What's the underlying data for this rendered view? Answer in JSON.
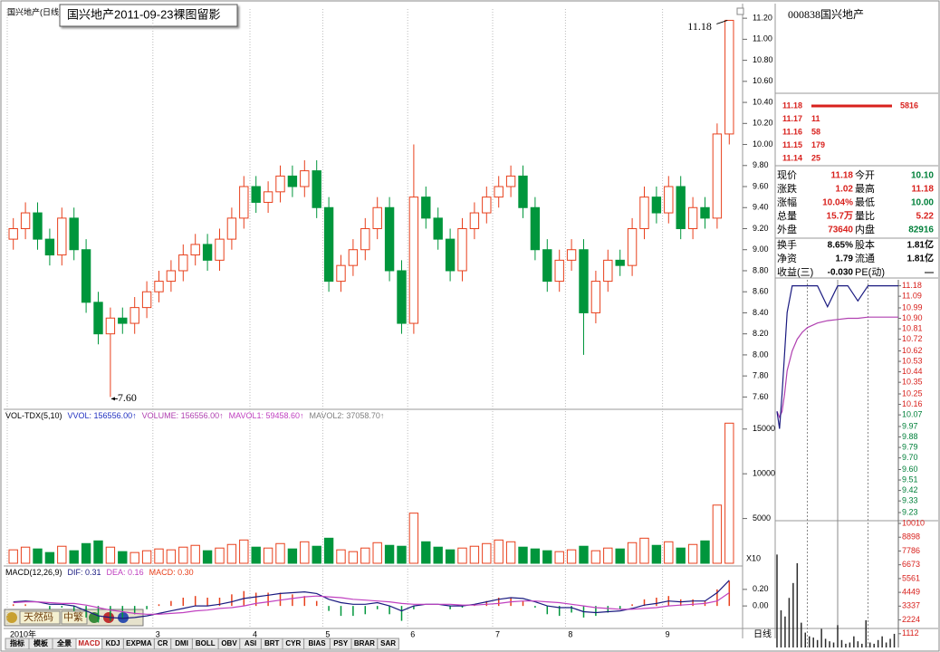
{
  "window_title": "国兴地产2011-09-23裸图留影",
  "chart_data": [
    {
      "type": "candlestick",
      "title": "国兴地产(日线)",
      "categories": [
        "2010年",
        null,
        null,
        null,
        null,
        null,
        null,
        null,
        null,
        null,
        null,
        null,
        "3",
        null,
        null,
        null,
        null,
        null,
        null,
        null,
        "4",
        null,
        null,
        null,
        null,
        null,
        "5",
        null,
        null,
        null,
        null,
        null,
        null,
        "6",
        null,
        null,
        null,
        null,
        null,
        null,
        "7",
        null,
        null,
        null,
        null,
        null,
        "8",
        null,
        null,
        null,
        null,
        null,
        null,
        null,
        "9",
        null,
        null,
        null,
        null,
        null
      ],
      "open": [
        9.1,
        9.2,
        9.35,
        9.1,
        8.95,
        9.3,
        9.0,
        8.5,
        8.2,
        8.35,
        8.3,
        8.45,
        8.6,
        8.7,
        8.8,
        8.95,
        9.05,
        8.9,
        9.1,
        9.3,
        9.6,
        9.45,
        9.55,
        9.7,
        9.6,
        9.75,
        9.4,
        8.7,
        8.85,
        9.0,
        9.2,
        9.4,
        8.8,
        8.3,
        9.5,
        9.3,
        9.1,
        8.8,
        9.2,
        9.35,
        9.5,
        9.6,
        9.7,
        9.4,
        9.0,
        8.7,
        8.9,
        9.0,
        8.4,
        8.7,
        8.9,
        8.85,
        9.2,
        9.5,
        9.35,
        9.6,
        9.2,
        9.4,
        9.3,
        10.1
      ],
      "high": [
        9.3,
        9.45,
        9.45,
        9.2,
        9.4,
        9.4,
        9.1,
        8.6,
        8.45,
        8.45,
        8.55,
        8.7,
        8.8,
        8.9,
        9.05,
        9.15,
        9.15,
        9.2,
        9.4,
        9.7,
        9.7,
        9.65,
        9.8,
        9.8,
        9.85,
        9.85,
        9.5,
        8.95,
        9.1,
        9.3,
        9.5,
        9.5,
        8.9,
        10.0,
        9.6,
        9.4,
        9.2,
        9.3,
        9.45,
        9.6,
        9.7,
        9.8,
        9.8,
        9.5,
        9.1,
        9.0,
        9.1,
        9.1,
        8.8,
        9.0,
        9.0,
        9.3,
        9.6,
        9.6,
        9.7,
        9.7,
        9.5,
        9.5,
        10.2,
        11.18
      ],
      "low": [
        9.0,
        9.1,
        9.0,
        8.85,
        8.85,
        8.9,
        8.4,
        8.1,
        7.6,
        8.2,
        8.2,
        8.35,
        8.5,
        8.6,
        8.7,
        8.85,
        8.8,
        8.8,
        9.0,
        9.2,
        9.35,
        9.35,
        9.45,
        9.5,
        9.5,
        9.3,
        8.6,
        8.6,
        8.75,
        8.9,
        9.1,
        8.7,
        8.2,
        8.2,
        9.2,
        9.0,
        8.7,
        8.7,
        9.1,
        9.25,
        9.4,
        9.5,
        9.3,
        8.9,
        8.6,
        8.6,
        8.8,
        8.0,
        8.3,
        8.6,
        8.75,
        8.75,
        9.1,
        9.25,
        9.25,
        9.1,
        9.1,
        9.2,
        9.2,
        10.0
      ],
      "close": [
        9.2,
        9.35,
        9.1,
        8.95,
        9.3,
        9.0,
        8.5,
        8.2,
        8.35,
        8.3,
        8.45,
        8.6,
        8.7,
        8.8,
        8.95,
        9.05,
        8.9,
        9.1,
        9.3,
        9.6,
        9.45,
        9.55,
        9.7,
        9.6,
        9.75,
        9.4,
        8.7,
        8.85,
        9.0,
        9.2,
        9.4,
        8.8,
        8.3,
        9.5,
        9.3,
        9.1,
        8.8,
        9.2,
        9.35,
        9.5,
        9.6,
        9.7,
        9.4,
        9.0,
        8.7,
        8.9,
        9.0,
        8.4,
        8.7,
        8.9,
        8.85,
        9.2,
        9.5,
        9.35,
        9.6,
        9.2,
        9.4,
        9.3,
        10.1,
        11.18
      ],
      "up_color": "#e8401c",
      "down_color": "#00963c",
      "ylim": [
        7.5,
        11.27
      ],
      "yticks": [
        {
          "value": 7.6,
          "label": "7.60"
        },
        {
          "value": 7.8,
          "label": "7.80"
        },
        {
          "value": 8,
          "label": "8.00"
        },
        {
          "value": 8.2,
          "label": "8.20"
        },
        {
          "value": 8.4,
          "label": "8.40"
        },
        {
          "value": 8.6,
          "label": "8.60"
        },
        {
          "value": 8.8,
          "label": "8.80"
        },
        {
          "value": 9,
          "label": "9.00"
        },
        {
          "value": 9.2,
          "label": "9.20"
        },
        {
          "value": 9.4,
          "label": "9.40"
        },
        {
          "value": 9.6,
          "label": "9.60"
        },
        {
          "value": 9.8,
          "label": "9.80"
        },
        {
          "value": 10,
          "label": "10.00"
        },
        {
          "value": 10.2,
          "label": "10.20"
        },
        {
          "value": 10.4,
          "label": "10.40"
        },
        {
          "value": 10.6,
          "label": "10.60"
        },
        {
          "value": 10.8,
          "label": "10.80"
        },
        {
          "value": 11,
          "label": "11.00"
        },
        {
          "value": 11.2,
          "label": "11.20"
        }
      ],
      "grid": false,
      "high_label": "11.18",
      "low_label": "7.60",
      "period_label": "日线"
    },
    {
      "type": "volume",
      "header": [
        {
          "text": "VOL-TDX(5,10)",
          "color": "#000000"
        },
        {
          "text": "VVOL: 156556.00↑",
          "color": "#2030c0"
        },
        {
          "text": "VOLUME: 156556.00↑",
          "color": "#b040b0"
        },
        {
          "text": "MAVOL1: 59458.60↑",
          "color": "#c040c0"
        },
        {
          "text": "MAVOL2: 37058.70↑",
          "color": "#808080"
        }
      ],
      "values": [
        1500,
        1800,
        1600,
        1200,
        1900,
        1400,
        2200,
        2500,
        1800,
        1300,
        1200,
        1400,
        1600,
        1500,
        1800,
        2000,
        1400,
        1700,
        2100,
        2600,
        1800,
        1700,
        2200,
        1600,
        2400,
        1900,
        2800,
        1500,
        1300,
        1700,
        2300,
        2000,
        1900,
        5600,
        2400,
        1800,
        1500,
        1700,
        1900,
        2200,
        2600,
        2400,
        1800,
        1600,
        1400,
        1300,
        1500,
        1900,
        1400,
        1700,
        1600,
        2300,
        2800,
        2000,
        2400,
        1700,
        2100,
        2500,
        6500,
        15655
      ],
      "ylim": [
        0,
        16900
      ],
      "yticks": [
        5000,
        10000,
        15000
      ],
      "scale_label": "X10"
    },
    {
      "type": "macd",
      "header": [
        {
          "text": "MACD(12,26,9)",
          "color": "#000000"
        },
        {
          "text": "DIF: 0.31",
          "color": "#1a1a80"
        },
        {
          "text": "DEA: 0.16",
          "color": "#c040c0"
        },
        {
          "text": "MACD: 0.30",
          "color": "#e8401c"
        }
      ],
      "histogram": [
        0.02,
        0.02,
        0.0,
        -0.04,
        -0.02,
        -0.06,
        -0.14,
        -0.2,
        -0.18,
        -0.16,
        -0.1,
        -0.04,
        0.02,
        0.06,
        0.1,
        0.12,
        0.1,
        0.1,
        0.14,
        0.18,
        0.16,
        0.16,
        0.16,
        0.14,
        0.12,
        0.06,
        -0.06,
        -0.12,
        -0.12,
        -0.1,
        -0.04,
        -0.1,
        -0.18,
        -0.04,
        0.0,
        0.0,
        -0.04,
        -0.02,
        0.02,
        0.06,
        0.1,
        0.1,
        0.06,
        -0.02,
        -0.1,
        -0.12,
        -0.08,
        -0.14,
        -0.12,
        -0.08,
        -0.04,
        0.02,
        0.08,
        0.1,
        0.12,
        0.08,
        0.08,
        0.06,
        0.2,
        0.3
      ],
      "dif": [
        0.05,
        0.06,
        0.05,
        0.02,
        0.02,
        0.0,
        -0.06,
        -0.12,
        -0.14,
        -0.15,
        -0.14,
        -0.12,
        -0.09,
        -0.06,
        -0.03,
        0.0,
        0.0,
        0.02,
        0.05,
        0.09,
        0.11,
        0.13,
        0.15,
        0.16,
        0.17,
        0.15,
        0.08,
        0.04,
        0.02,
        0.02,
        0.04,
        0.0,
        -0.06,
        0.0,
        0.02,
        0.02,
        0.0,
        0.0,
        0.02,
        0.05,
        0.08,
        0.1,
        0.09,
        0.05,
        0.0,
        -0.02,
        -0.02,
        -0.07,
        -0.08,
        -0.07,
        -0.06,
        -0.03,
        0.01,
        0.03,
        0.06,
        0.05,
        0.06,
        0.06,
        0.16,
        0.31
      ],
      "dea": [
        0.04,
        0.05,
        0.05,
        0.04,
        0.03,
        0.03,
        0.01,
        -0.02,
        -0.05,
        -0.07,
        -0.09,
        -0.1,
        -0.1,
        -0.09,
        -0.08,
        -0.06,
        -0.05,
        -0.03,
        -0.02,
        0.0,
        0.03,
        0.05,
        0.07,
        0.09,
        0.11,
        0.12,
        0.11,
        0.1,
        0.08,
        0.07,
        0.06,
        0.05,
        0.03,
        0.02,
        0.02,
        0.02,
        0.02,
        0.01,
        0.01,
        0.02,
        0.03,
        0.05,
        0.06,
        0.06,
        0.05,
        0.04,
        0.02,
        0.0,
        -0.02,
        -0.03,
        -0.04,
        -0.04,
        -0.03,
        -0.02,
        0.0,
        0.01,
        0.02,
        0.03,
        0.06,
        0.16
      ],
      "dif_color": "#1a1a80",
      "dea_color": "#c040c0",
      "up_color": "#e8401c",
      "down_color": "#00963c",
      "ylim": [
        -0.25,
        0.45
      ],
      "yticks": [
        {
          "value": 0,
          "label": "0.00"
        },
        {
          "value": 0.2,
          "label": "0.20"
        }
      ]
    },
    {
      "type": "intraday",
      "x": [
        0,
        5,
        10,
        15,
        20,
        30,
        40,
        50,
        60,
        80,
        100,
        120,
        140,
        160,
        180,
        200,
        220,
        240
      ],
      "price": [
        10.1,
        9.95,
        10.25,
        10.6,
        10.95,
        11.18,
        11.18,
        11.18,
        11.18,
        11.18,
        11.0,
        11.18,
        11.18,
        11.05,
        11.18,
        11.18,
        11.18,
        11.18
      ],
      "average": [
        10.1,
        10.05,
        10.1,
        10.25,
        10.45,
        10.62,
        10.72,
        10.78,
        10.82,
        10.86,
        10.88,
        10.89,
        10.9,
        10.9,
        10.91,
        10.91,
        10.91,
        10.91
      ],
      "price_color": "#1a1a80",
      "average_color": "#b040b0",
      "xlim": [
        0,
        240
      ],
      "ylim": [
        9.16,
        11.2
      ],
      "yticks": [
        11.18,
        11.09,
        10.99,
        {
          "value": 10.9,
          "label": "10.90"
        },
        10.81,
        10.72,
        10.62,
        10.53,
        10.44,
        10.35,
        10.25,
        10.16,
        10.07,
        9.97,
        9.88,
        9.79,
        {
          "value": 9.7,
          "label": "9.70"
        },
        {
          "value": 9.6,
          "label": "9.60"
        },
        9.51,
        9.42,
        9.33,
        9.23
      ]
    },
    {
      "type": "intraday-volume",
      "x": [
        0,
        8,
        16,
        24,
        32,
        40,
        48,
        56,
        64,
        72,
        80,
        88,
        96,
        104,
        112,
        120,
        128,
        136,
        144,
        152,
        160,
        168,
        176,
        184,
        192,
        200,
        208,
        216,
        224,
        232
      ],
      "values": [
        7500,
        3000,
        2500,
        4000,
        5200,
        6800,
        2000,
        1200,
        900,
        800,
        600,
        1500,
        700,
        500,
        400,
        1800,
        600,
        300,
        400,
        900,
        500,
        300,
        2200,
        400,
        300,
        600,
        900,
        400,
        700,
        1100
      ],
      "color": "#2a2a2a",
      "xlim": [
        0,
        240
      ],
      "ylim": [
        0,
        10230
      ],
      "yticks": [
        10010,
        8898,
        7786,
        6673,
        5561,
        4449,
        3337,
        2224,
        1112
      ]
    }
  ],
  "quote": {
    "code_name": "000838国兴地产",
    "book": [
      {
        "price": "11.18",
        "volume": "5816"
      },
      {
        "price": "11.17",
        "volume": "11"
      },
      {
        "price": "11.16",
        "volume": "58"
      },
      {
        "price": "11.15",
        "volume": "179"
      },
      {
        "price": "11.14",
        "volume": "25"
      }
    ],
    "rows": [
      [
        "现价",
        "11.18",
        "今开",
        "10.10"
      ],
      [
        "涨跌",
        "1.02",
        "最高",
        "11.18"
      ],
      [
        "涨幅",
        "10.04%",
        "最低",
        "10.00"
      ],
      [
        "总量",
        "15.7万",
        "量比",
        "5.22"
      ],
      [
        "外盘",
        "73640",
        "内盘",
        "82916"
      ],
      [
        "换手",
        "8.65%",
        "股本",
        "1.81亿"
      ],
      [
        "净资",
        "1.79",
        "流通",
        "1.81亿"
      ],
      [
        "收益(三)",
        "-0.030",
        "PE(动)",
        "—"
      ]
    ]
  },
  "toolbar": {
    "logos": [
      "天然码",
      "中繁"
    ],
    "tabs": [
      "指标",
      "模板",
      "全景",
      "MACD",
      "KDJ",
      "EXPMA",
      "CR",
      "DMI",
      "BOLL",
      "OBV",
      "ASI",
      "BRT",
      "CYR",
      "BIAS",
      "PSY",
      "BRAR",
      "SAR"
    ]
  }
}
